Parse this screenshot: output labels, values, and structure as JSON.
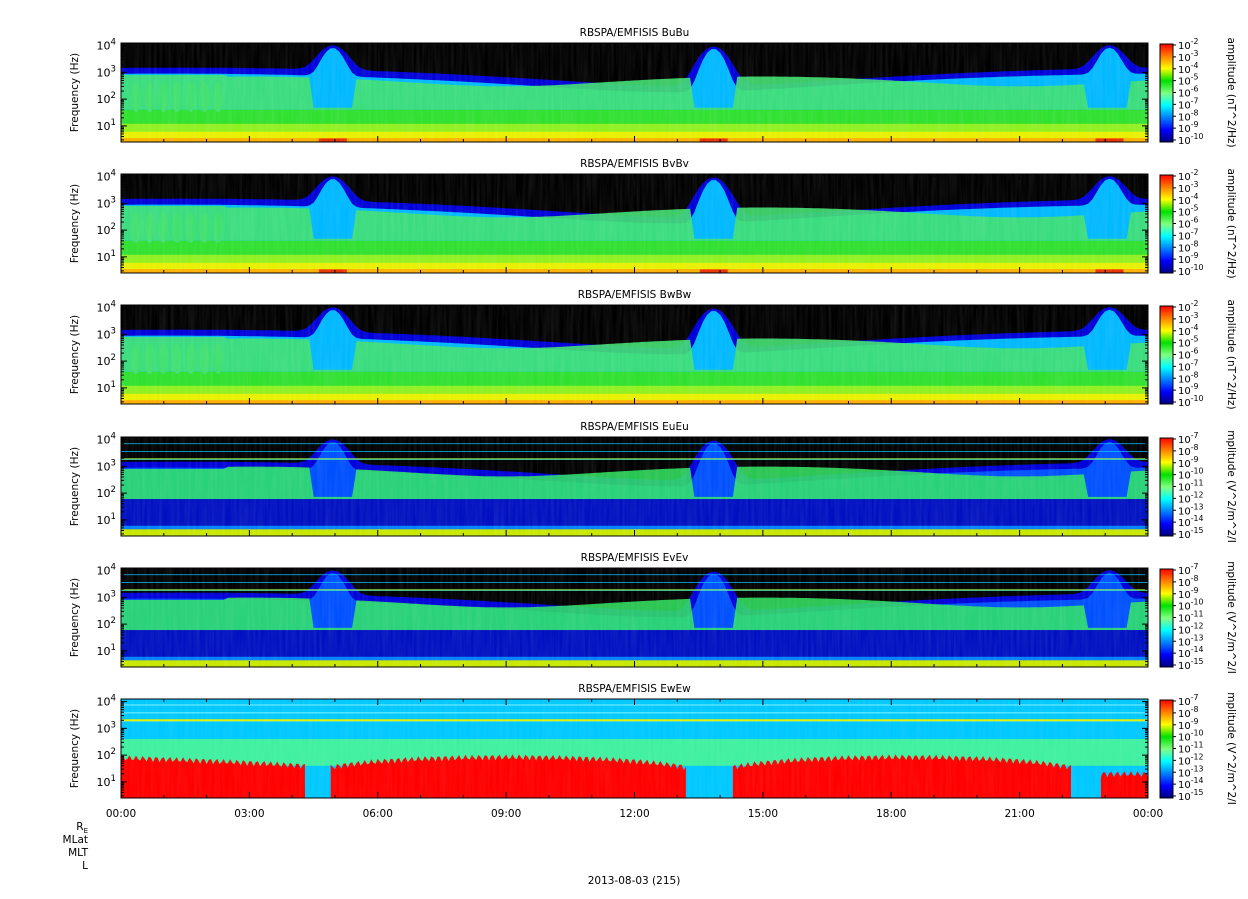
{
  "chart_data": {
    "type": "heatmap",
    "panels": [
      {
        "title": "RBSPA/EMFISIS  BuBu",
        "ylabel": "Frequency (Hz)",
        "y_scale": "log",
        "y_ticks": [
          {
            "base": "10",
            "exp": "1"
          },
          {
            "base": "10",
            "exp": "2"
          },
          {
            "base": "10",
            "exp": "3"
          },
          {
            "base": "10",
            "exp": "4"
          }
        ],
        "colorbar": {
          "label": "amplitude (nT^2/Hz)",
          "ticks": [
            {
              "base": "10",
              "exp": "-2"
            },
            {
              "base": "10",
              "exp": "-3"
            },
            {
              "base": "10",
              "exp": "-4"
            },
            {
              "base": "10",
              "exp": "-5"
            },
            {
              "base": "10",
              "exp": "-6"
            },
            {
              "base": "10",
              "exp": "-7"
            },
            {
              "base": "10",
              "exp": "-8"
            },
            {
              "base": "10",
              "exp": "-9"
            },
            {
              "base": "10",
              "exp": "-10"
            }
          ]
        }
      },
      {
        "title": "RBSPA/EMFISIS  BvBv",
        "ylabel": "Frequency (Hz)",
        "y_scale": "log",
        "y_ticks": [
          {
            "base": "10",
            "exp": "1"
          },
          {
            "base": "10",
            "exp": "2"
          },
          {
            "base": "10",
            "exp": "3"
          },
          {
            "base": "10",
            "exp": "4"
          }
        ],
        "colorbar": {
          "label": "amplitude (nT^2/Hz)",
          "ticks": [
            {
              "base": "10",
              "exp": "-2"
            },
            {
              "base": "10",
              "exp": "-3"
            },
            {
              "base": "10",
              "exp": "-4"
            },
            {
              "base": "10",
              "exp": "-5"
            },
            {
              "base": "10",
              "exp": "-6"
            },
            {
              "base": "10",
              "exp": "-7"
            },
            {
              "base": "10",
              "exp": "-8"
            },
            {
              "base": "10",
              "exp": "-9"
            },
            {
              "base": "10",
              "exp": "-10"
            }
          ]
        }
      },
      {
        "title": "RBSPA/EMFISIS  BwBw",
        "ylabel": "Frequency (Hz)",
        "y_scale": "log",
        "y_ticks": [
          {
            "base": "10",
            "exp": "1"
          },
          {
            "base": "10",
            "exp": "2"
          },
          {
            "base": "10",
            "exp": "3"
          },
          {
            "base": "10",
            "exp": "4"
          }
        ],
        "colorbar": {
          "label": "amplitude (nT^2/Hz)",
          "ticks": [
            {
              "base": "10",
              "exp": "-2"
            },
            {
              "base": "10",
              "exp": "-3"
            },
            {
              "base": "10",
              "exp": "-4"
            },
            {
              "base": "10",
              "exp": "-5"
            },
            {
              "base": "10",
              "exp": "-6"
            },
            {
              "base": "10",
              "exp": "-7"
            },
            {
              "base": "10",
              "exp": "-8"
            },
            {
              "base": "10",
              "exp": "-9"
            },
            {
              "base": "10",
              "exp": "-10"
            }
          ]
        }
      },
      {
        "title": "RBSPA/EMFISIS  EuEu",
        "ylabel": "Frequency (Hz)",
        "y_scale": "log",
        "y_ticks": [
          {
            "base": "10",
            "exp": "1"
          },
          {
            "base": "10",
            "exp": "2"
          },
          {
            "base": "10",
            "exp": "3"
          },
          {
            "base": "10",
            "exp": "4"
          }
        ],
        "colorbar": {
          "label": "mplitude (V^2/m^2/I",
          "ticks": [
            {
              "base": "10",
              "exp": "-7"
            },
            {
              "base": "10",
              "exp": "-8"
            },
            {
              "base": "10",
              "exp": "-9"
            },
            {
              "base": "10",
              "exp": "-10"
            },
            {
              "base": "10",
              "exp": "-11"
            },
            {
              "base": "10",
              "exp": "-12"
            },
            {
              "base": "10",
              "exp": "-13"
            },
            {
              "base": "10",
              "exp": "-14"
            },
            {
              "base": "10",
              "exp": "-15"
            }
          ]
        }
      },
      {
        "title": "RBSPA/EMFISIS  EvEv",
        "ylabel": "Frequency (Hz)",
        "y_scale": "log",
        "y_ticks": [
          {
            "base": "10",
            "exp": "1"
          },
          {
            "base": "10",
            "exp": "2"
          },
          {
            "base": "10",
            "exp": "3"
          },
          {
            "base": "10",
            "exp": "4"
          }
        ],
        "colorbar": {
          "label": "mplitude (V^2/m^2/I",
          "ticks": [
            {
              "base": "10",
              "exp": "-7"
            },
            {
              "base": "10",
              "exp": "-8"
            },
            {
              "base": "10",
              "exp": "-9"
            },
            {
              "base": "10",
              "exp": "-10"
            },
            {
              "base": "10",
              "exp": "-11"
            },
            {
              "base": "10",
              "exp": "-12"
            },
            {
              "base": "10",
              "exp": "-13"
            },
            {
              "base": "10",
              "exp": "-14"
            },
            {
              "base": "10",
              "exp": "-15"
            }
          ]
        }
      },
      {
        "title": "RBSPA/EMFISIS  EwEw",
        "ylabel": "Frequency (Hz)",
        "y_scale": "log",
        "y_ticks": [
          {
            "base": "10",
            "exp": "1"
          },
          {
            "base": "10",
            "exp": "2"
          },
          {
            "base": "10",
            "exp": "3"
          },
          {
            "base": "10",
            "exp": "4"
          }
        ],
        "colorbar": {
          "label": "mplitude (V^2/m^2/I",
          "ticks": [
            {
              "base": "10",
              "exp": "-7"
            },
            {
              "base": "10",
              "exp": "-8"
            },
            {
              "base": "10",
              "exp": "-9"
            },
            {
              "base": "10",
              "exp": "-10"
            },
            {
              "base": "10",
              "exp": "-11"
            },
            {
              "base": "10",
              "exp": "-12"
            },
            {
              "base": "10",
              "exp": "-13"
            },
            {
              "base": "10",
              "exp": "-14"
            },
            {
              "base": "10",
              "exp": "-15"
            }
          ]
        }
      }
    ],
    "x_ticks": [
      "00:00",
      "03:00",
      "06:00",
      "09:00",
      "12:00",
      "15:00",
      "18:00",
      "21:00",
      "00:00"
    ],
    "ephemeris_labels": [
      "R",
      "MLat",
      "MLT",
      "L"
    ],
    "ephemeris_subscript": "E",
    "date_label": "2013-08-03 (215)",
    "colormap": [
      "#00007f",
      "#0000ff",
      "#0080ff",
      "#00ffff",
      "#80ff80",
      "#00e000",
      "#ffff00",
      "#ff8000",
      "#ff0000"
    ],
    "no_data_color": "#000000"
  }
}
